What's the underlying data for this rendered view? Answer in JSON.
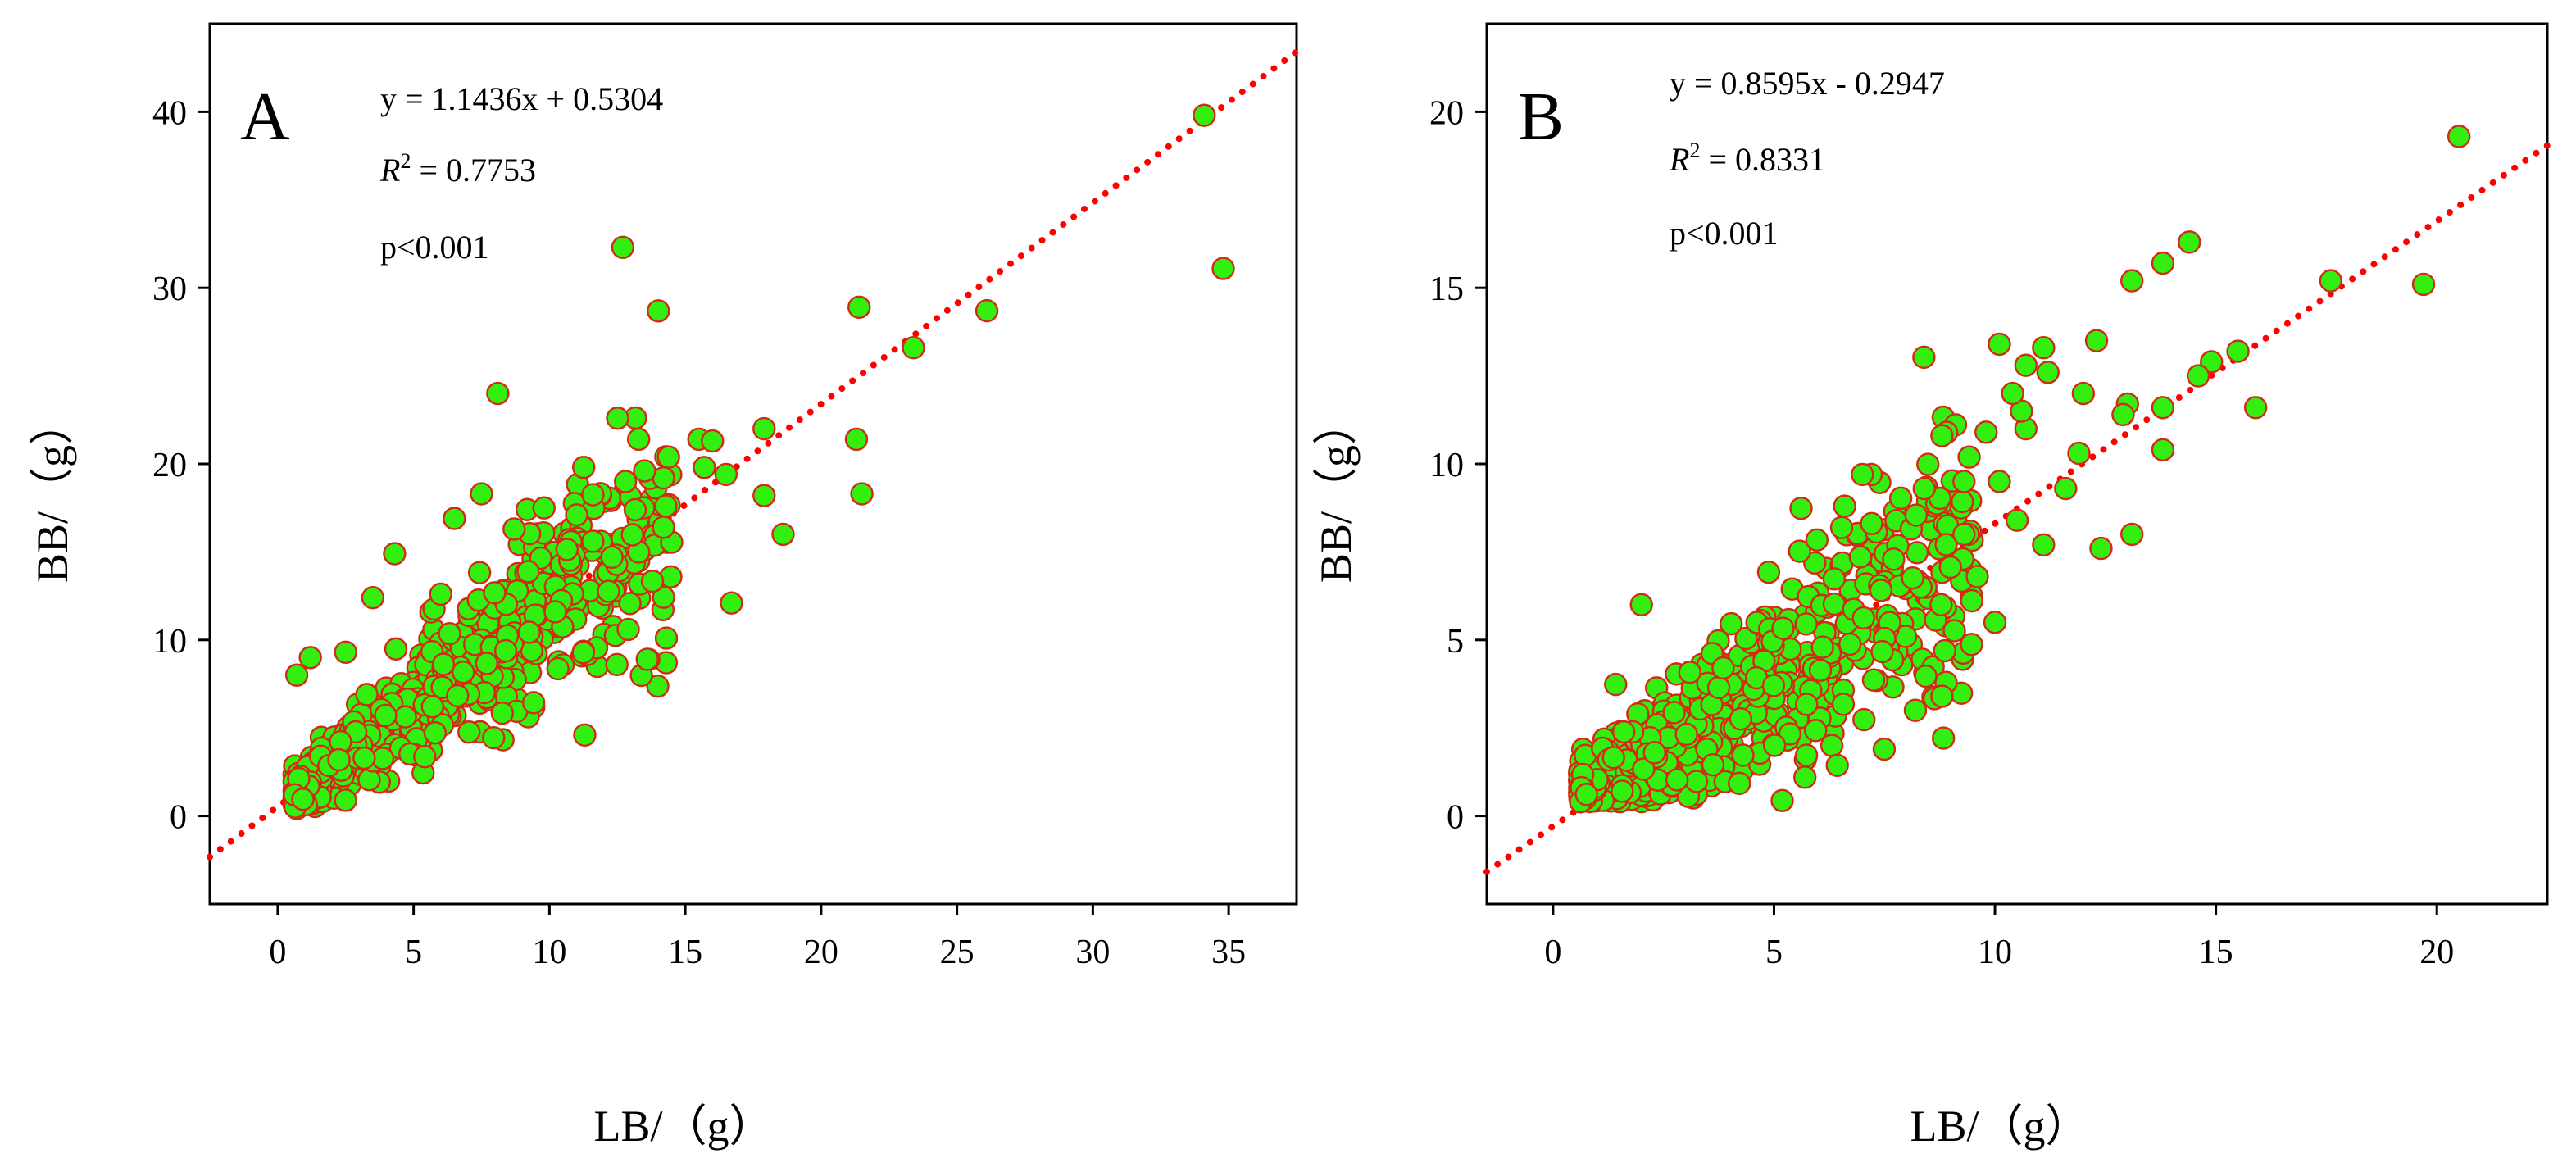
{
  "chart_data": [
    {
      "type": "scatter",
      "panel": "A",
      "xlabel": "LB/（g）",
      "ylabel": "BB/（g）",
      "xlim": [
        -2.5,
        37.5
      ],
      "ylim": [
        -5,
        45
      ],
      "xticks": [
        0,
        5,
        10,
        15,
        20,
        25,
        30,
        35
      ],
      "yticks": [
        0,
        10,
        20,
        30,
        40
      ],
      "fit": {
        "slope": 1.1436,
        "intercept": 0.5304
      },
      "annotations": {
        "equation": "y = 1.1436x + 0.5304",
        "r2": "R2 = 0.7753",
        "p": "p<0.001"
      },
      "cluster": {
        "count": 700,
        "x_min": 0.6,
        "x_max": 14.5,
        "seed": 11,
        "noise": 0.2
      },
      "points": [
        [
          34.1,
          39.8
        ],
        [
          34.8,
          31.1
        ],
        [
          12.7,
          32.3
        ],
        [
          8.1,
          24.0
        ],
        [
          21.4,
          28.9
        ],
        [
          26.1,
          28.7
        ],
        [
          23.4,
          26.6
        ],
        [
          15.5,
          21.4
        ],
        [
          16.0,
          21.3
        ],
        [
          17.9,
          22.0
        ],
        [
          21.3,
          21.4
        ],
        [
          21.5,
          18.3
        ],
        [
          16.5,
          19.4
        ],
        [
          15.7,
          19.8
        ],
        [
          17.9,
          18.2
        ],
        [
          18.6,
          16.0
        ],
        [
          16.7,
          12.1
        ],
        [
          14.2,
          19.2
        ],
        [
          13.5,
          19.6
        ],
        [
          12.8,
          19.0
        ],
        [
          11.3,
          4.6
        ],
        [
          12.9,
          10.6
        ],
        [
          13.6,
          8.9
        ],
        [
          0.7,
          8.0
        ],
        [
          1.2,
          9.0
        ],
        [
          4.3,
          14.9
        ],
        [
          7.5,
          18.3
        ],
        [
          6.5,
          16.9
        ],
        [
          9.8,
          17.5
        ],
        [
          11.0,
          17.1
        ],
        [
          11.6,
          15.6
        ],
        [
          12.3,
          14.7
        ],
        [
          8.7,
          16.3
        ],
        [
          6.0,
          12.6
        ],
        [
          3.5,
          12.4
        ],
        [
          2.5,
          9.3
        ],
        [
          14.2,
          16.4
        ]
      ]
    },
    {
      "type": "scatter",
      "panel": "B",
      "xlabel": "LB/（g）",
      "ylabel": "BB/（g）",
      "xlim": [
        -1.5,
        22.5
      ],
      "ylim": [
        -2.5,
        22.5
      ],
      "xticks": [
        0,
        5,
        10,
        15,
        20
      ],
      "yticks": [
        0,
        5,
        10,
        15,
        20
      ],
      "fit": {
        "slope": 0.8595,
        "intercept": -0.2947
      },
      "annotations": {
        "equation": "y = 0.8595x - 0.2947",
        "r2": "R2 = 0.8331",
        "p": "p<0.001"
      },
      "cluster": {
        "count": 650,
        "x_min": 0.6,
        "x_max": 9.5,
        "seed": 7,
        "noise": 0.18
      },
      "points": [
        [
          20.5,
          19.3
        ],
        [
          19.7,
          15.1
        ],
        [
          17.6,
          15.2
        ],
        [
          14.4,
          16.3
        ],
        [
          13.8,
          15.7
        ],
        [
          13.1,
          15.2
        ],
        [
          15.9,
          11.6
        ],
        [
          15.5,
          13.2
        ],
        [
          14.9,
          12.9
        ],
        [
          14.6,
          12.5
        ],
        [
          13.8,
          11.6
        ],
        [
          13.8,
          10.4
        ],
        [
          13.0,
          11.7
        ],
        [
          12.9,
          11.4
        ],
        [
          13.1,
          8.0
        ],
        [
          12.4,
          7.6
        ],
        [
          12.3,
          13.5
        ],
        [
          12.0,
          12.0
        ],
        [
          11.9,
          10.3
        ],
        [
          11.6,
          9.3
        ],
        [
          11.2,
          12.6
        ],
        [
          11.1,
          13.3
        ],
        [
          10.7,
          12.8
        ],
        [
          10.7,
          11.0
        ],
        [
          10.6,
          11.5
        ],
        [
          10.4,
          12.0
        ],
        [
          10.1,
          13.4
        ],
        [
          10.1,
          9.5
        ],
        [
          11.1,
          7.7
        ],
        [
          10.0,
          5.5
        ],
        [
          10.5,
          8.4
        ],
        [
          9.8,
          10.9
        ],
        [
          9.3,
          9.5
        ],
        [
          8.8,
          10.8
        ],
        [
          8.4,
          9.3
        ],
        [
          7.2,
          9.7
        ],
        [
          7.0,
          9.7
        ],
        [
          6.6,
          8.8
        ],
        [
          2.0,
          6.0
        ],
        [
          5.7,
          1.1
        ],
        [
          8.8,
          3.4
        ],
        [
          8.2,
          3.0
        ],
        [
          9.6,
          6.8
        ],
        [
          9.3,
          8.0
        ]
      ]
    }
  ]
}
